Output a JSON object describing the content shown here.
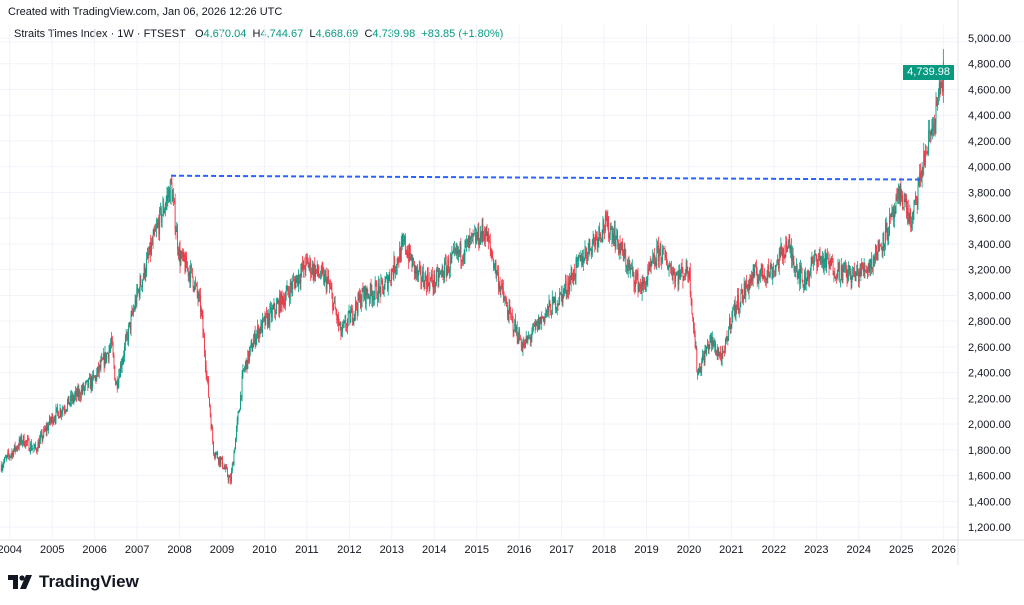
{
  "header": {
    "created": "Created with TradingView.com, Jan 06, 2026 12:26 UTC",
    "symbol": "Straits Times Index · 1W · FTSEST",
    "open_label": "O",
    "open": "4,670.04",
    "high_label": "H",
    "high": "4,744.67",
    "low_label": "L",
    "low": "4,668.69",
    "close_label": "C",
    "close": "4,739.98",
    "change": "+83.85 (+1.80%)"
  },
  "logo": {
    "text": "TradingView"
  },
  "colors": {
    "up": "#089981",
    "down": "#f23645",
    "trendline": "#2962ff",
    "grid": "#f0f3fa"
  },
  "chart_data": {
    "type": "candlestick",
    "title": "Straits Times Index · 1W · FTSEST",
    "interval": "1W",
    "last_price": "4,739.98",
    "y_ticks": [
      "5,000.00",
      "4,800.00",
      "4,600.00",
      "4,400.00",
      "4,200.00",
      "4,000.00",
      "3,800.00",
      "3,600.00",
      "3,400.00",
      "3,200.00",
      "3,000.00",
      "2,800.00",
      "2,600.00",
      "2,400.00",
      "2,200.00",
      "2,000.00",
      "1,800.00",
      "1,600.00",
      "1,400.00",
      "1,200.00"
    ],
    "ylim": [
      1130,
      5100
    ],
    "x_ticks": [
      "2004",
      "2005",
      "2006",
      "2007",
      "2008",
      "2009",
      "2010",
      "2011",
      "2012",
      "2013",
      "2014",
      "2015",
      "2016",
      "2017",
      "2018",
      "2019",
      "2020",
      "2021",
      "2022",
      "2023",
      "2024",
      "2025",
      "2026"
    ],
    "xlim": [
      2003.77,
      2026.2
    ],
    "approx_close_path": [
      [
        2003.8,
        1680
      ],
      [
        2004.3,
        1880
      ],
      [
        2004.6,
        1800
      ],
      [
        2005.0,
        2050
      ],
      [
        2005.5,
        2200
      ],
      [
        2006.0,
        2350
      ],
      [
        2006.4,
        2620
      ],
      [
        2006.5,
        2300
      ],
      [
        2007.0,
        3000
      ],
      [
        2007.5,
        3550
      ],
      [
        2007.8,
        3850
      ],
      [
        2008.0,
        3300
      ],
      [
        2008.3,
        3150
      ],
      [
        2008.5,
        2900
      ],
      [
        2008.8,
        1800
      ],
      [
        2009.0,
        1700
      ],
      [
        2009.2,
        1550
      ],
      [
        2009.5,
        2400
      ],
      [
        2009.8,
        2700
      ],
      [
        2010.5,
        3000
      ],
      [
        2011.0,
        3250
      ],
      [
        2011.5,
        3100
      ],
      [
        2011.8,
        2700
      ],
      [
        2012.3,
        3000
      ],
      [
        2012.8,
        3050
      ],
      [
        2013.3,
        3400
      ],
      [
        2013.6,
        3150
      ],
      [
        2014.0,
        3100
      ],
      [
        2014.5,
        3300
      ],
      [
        2015.2,
        3500
      ],
      [
        2015.7,
        2900
      ],
      [
        2016.1,
        2600
      ],
      [
        2016.6,
        2850
      ],
      [
        2017.0,
        3000
      ],
      [
        2017.5,
        3300
      ],
      [
        2018.0,
        3550
      ],
      [
        2018.2,
        3500
      ],
      [
        2018.6,
        3200
      ],
      [
        2018.9,
        3050
      ],
      [
        2019.3,
        3350
      ],
      [
        2019.7,
        3150
      ],
      [
        2020.0,
        3200
      ],
      [
        2020.2,
        2400
      ],
      [
        2020.5,
        2650
      ],
      [
        2020.8,
        2500
      ],
      [
        2021.0,
        2850
      ],
      [
        2021.5,
        3150
      ],
      [
        2022.0,
        3200
      ],
      [
        2022.3,
        3400
      ],
      [
        2022.7,
        3100
      ],
      [
        2023.0,
        3300
      ],
      [
        2023.5,
        3200
      ],
      [
        2023.9,
        3150
      ],
      [
        2024.3,
        3250
      ],
      [
        2024.8,
        3600
      ],
      [
        2025.0,
        3800
      ],
      [
        2025.25,
        3550
      ],
      [
        2025.5,
        4000
      ],
      [
        2025.8,
        4400
      ],
      [
        2026.0,
        4740
      ]
    ],
    "trendline": {
      "style": "dashed",
      "from": [
        2007.8,
        3930
      ],
      "to": [
        2025.5,
        3900
      ]
    }
  }
}
